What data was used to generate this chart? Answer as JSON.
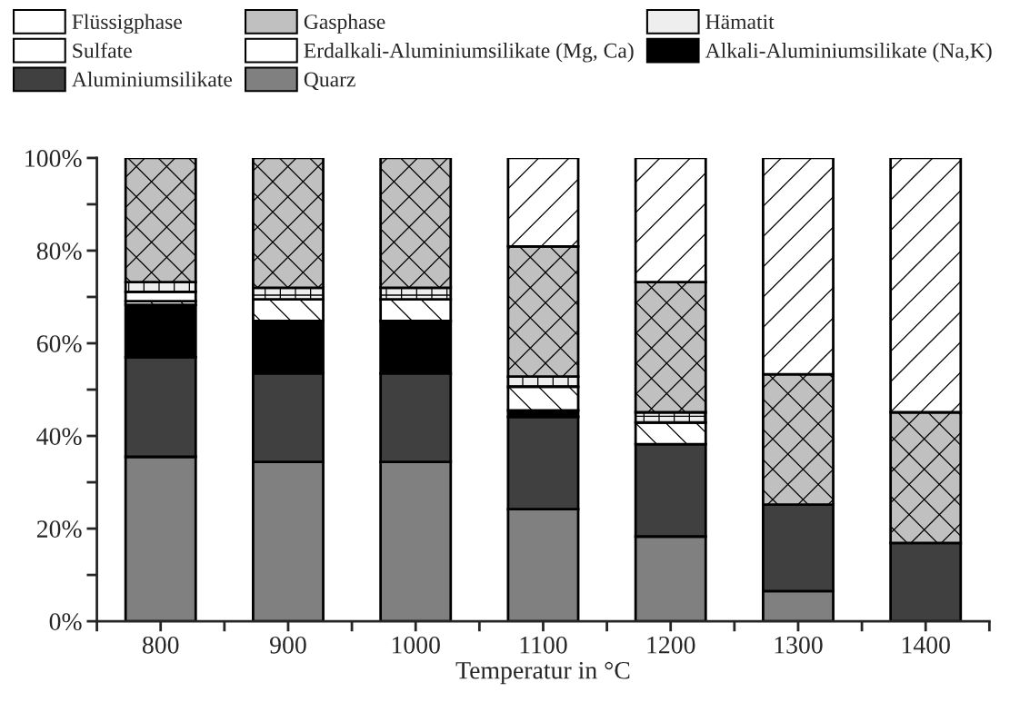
{
  "chart_data": {
    "type": "bar",
    "stacked": true,
    "xlabel": "Temperatur in °C",
    "categories": [
      "800",
      "900",
      "1000",
      "1100",
      "1200",
      "1300",
      "1400"
    ],
    "series": [
      {
        "name": "Quarz",
        "color": "#808080",
        "values": [
          35.5,
          34.4,
          34.4,
          24.2,
          18.3,
          6.5,
          0
        ]
      },
      {
        "name": "Aluminiumsilikate",
        "color": "#404040",
        "values": [
          21.5,
          19.1,
          19.1,
          19.9,
          19.9,
          18.7,
          16.9
        ]
      },
      {
        "name": "Alkali-Aluminiumsilikate (Na,K)",
        "color": "#000000",
        "values": [
          11.3,
          11.3,
          11.3,
          1.4,
          0,
          0,
          0
        ]
      },
      {
        "name": "Erdalkali-Aluminiumsilikate (Mg, Ca)",
        "color": "#ffffff",
        "values": [
          0.8,
          4.7,
          4.7,
          5.1,
          4.7,
          0,
          0
        ]
      },
      {
        "name": "Sulfate",
        "color": "#ffffff",
        "values": [
          2.0,
          0,
          0,
          0,
          0,
          0,
          0
        ]
      },
      {
        "name": "Hämatit",
        "color": "#eeeeee",
        "values": [
          2.1,
          2.5,
          2.5,
          2.2,
          2.2,
          0,
          0
        ]
      },
      {
        "name": "Gasphase",
        "color": "#c0c0c0",
        "values": [
          26.8,
          28.0,
          28.0,
          28.1,
          28.1,
          28.1,
          28.2
        ]
      },
      {
        "name": "Flüssigphase",
        "color": "#ffffff",
        "values": [
          0,
          0,
          0,
          19.1,
          26.8,
          46.7,
          54.9
        ]
      }
    ],
    "ylim": [
      0,
      100
    ],
    "yticks": [
      {
        "value": 0,
        "label": "0%"
      },
      {
        "value": 10,
        "label": null
      },
      {
        "value": 20,
        "label": "20%"
      },
      {
        "value": 30,
        "label": null
      },
      {
        "value": 40,
        "label": "40%"
      },
      {
        "value": 50,
        "label": null
      },
      {
        "value": 60,
        "label": "60%"
      },
      {
        "value": 70,
        "label": null
      },
      {
        "value": 80,
        "label": "80%"
      },
      {
        "value": 90,
        "label": null
      },
      {
        "value": 100,
        "label": "100%"
      }
    ],
    "grid": false,
    "legend": "top"
  }
}
